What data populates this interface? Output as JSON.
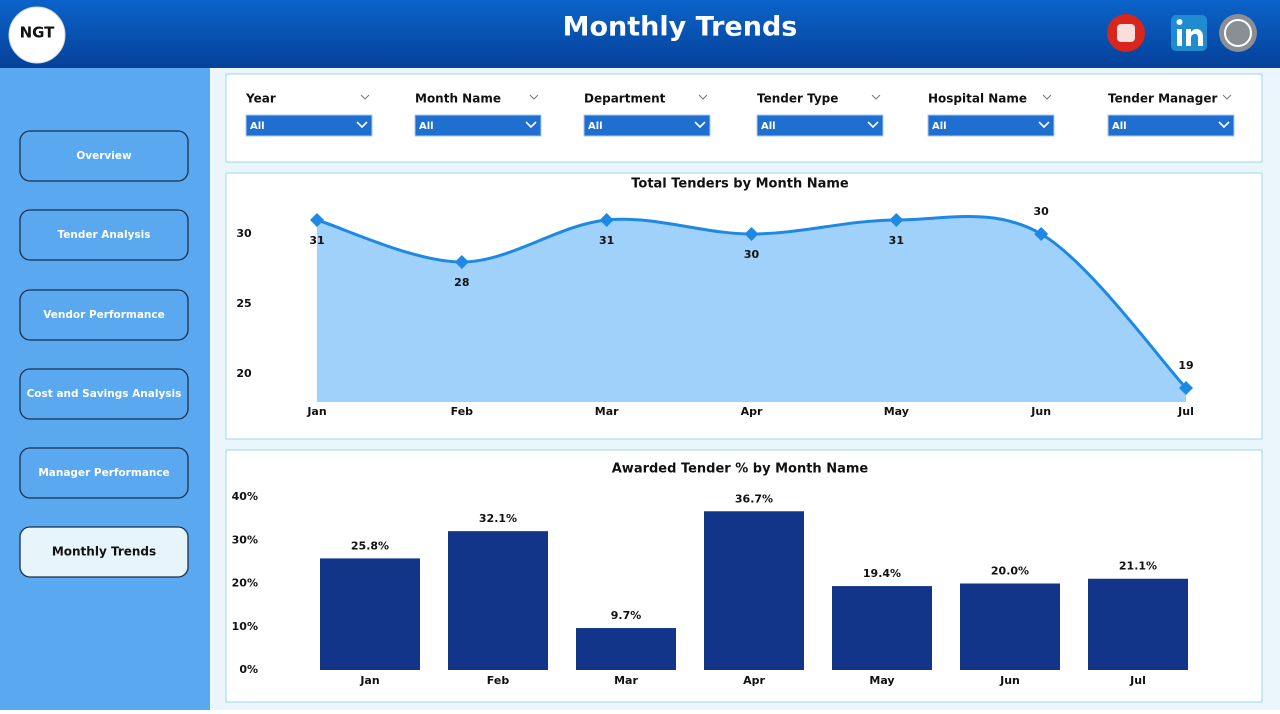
{
  "header": {
    "title": "Monthly Trends",
    "logo": "NGT"
  },
  "nav": [
    "Overview",
    "Tender Analysis",
    "Vendor Performance",
    "Cost and Savings Analysis",
    "Manager Performance",
    "Monthly Trends"
  ],
  "filters": [
    {
      "label": "Year",
      "value": "All"
    },
    {
      "label": "Month Name",
      "value": "All"
    },
    {
      "label": "Department",
      "value": "All"
    },
    {
      "label": "Tender Type",
      "value": "All"
    },
    {
      "label": "Hospital Name",
      "value": "All"
    },
    {
      "label": "Tender Manager",
      "value": "All"
    }
  ],
  "chart_data": [
    {
      "type": "area",
      "title": "Total Tenders by Month Name",
      "categories": [
        "Jan",
        "Feb",
        "Mar",
        "Apr",
        "May",
        "Jun",
        "Jul"
      ],
      "values": [
        31,
        28,
        31,
        30,
        31,
        30,
        19
      ],
      "color": "#1e88e5",
      "fill": "#a0d1fb",
      "ylim": [
        18,
        32
      ],
      "yticks": [
        20,
        25,
        30
      ]
    },
    {
      "type": "bar",
      "title": "Awarded Tender % by Month Name",
      "categories": [
        "Jan",
        "Feb",
        "Mar",
        "Apr",
        "May",
        "Jun",
        "Jul"
      ],
      "values": [
        25.8,
        32.1,
        9.7,
        36.7,
        19.4,
        20.0,
        21.1
      ],
      "value_labels": [
        "25.8%",
        "32.1%",
        "9.7%",
        "36.7%",
        "19.4%",
        "20.0%",
        "21.1%"
      ],
      "color": "#12358a",
      "ylim": [
        0,
        40
      ],
      "yticks": [
        {
          "value": 0,
          "label": "0%"
        },
        {
          "value": 10,
          "label": "10%"
        },
        {
          "value": 20,
          "label": "20%"
        },
        {
          "value": 30,
          "label": "30%"
        },
        {
          "value": 40,
          "label": "40%"
        }
      ]
    }
  ]
}
